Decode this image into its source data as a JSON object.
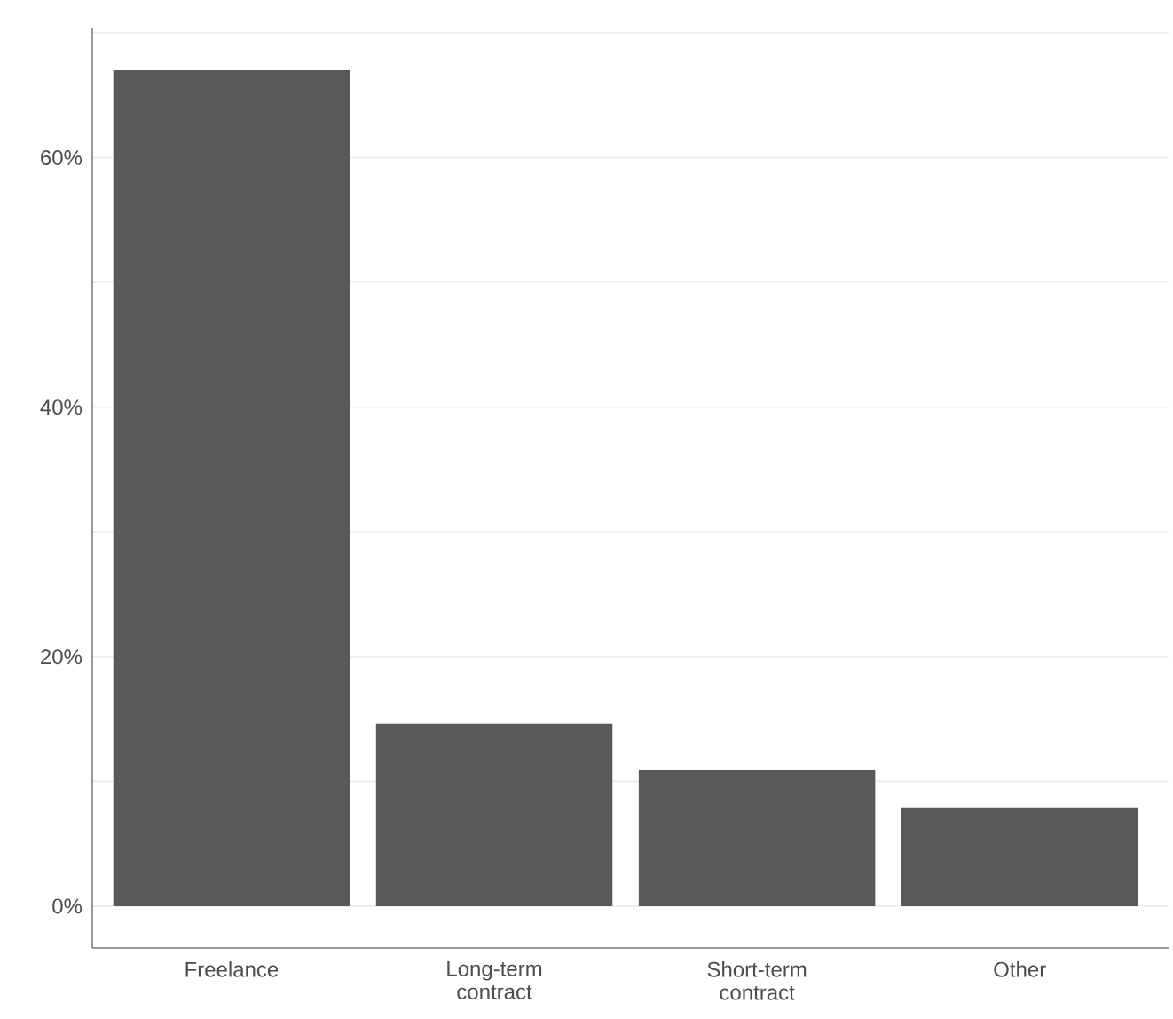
{
  "chart_data": {
    "type": "bar",
    "categories": [
      "Freelance",
      "Long-term contract",
      "Short-term contract",
      "Other"
    ],
    "values": [
      67,
      14.6,
      10.9,
      7.9
    ],
    "color": "#595959",
    "ylim": [
      -3.35,
      70.35
    ],
    "yticks": [
      {
        "value": 0,
        "label": "0%"
      },
      {
        "value": 10,
        "label": null
      },
      {
        "value": 20,
        "label": "20%"
      },
      {
        "value": 30,
        "label": null
      },
      {
        "value": 40,
        "label": "40%"
      },
      {
        "value": 50,
        "label": null
      },
      {
        "value": 60,
        "label": "60%"
      },
      {
        "value": 70,
        "label": null
      }
    ],
    "grid": "y"
  }
}
